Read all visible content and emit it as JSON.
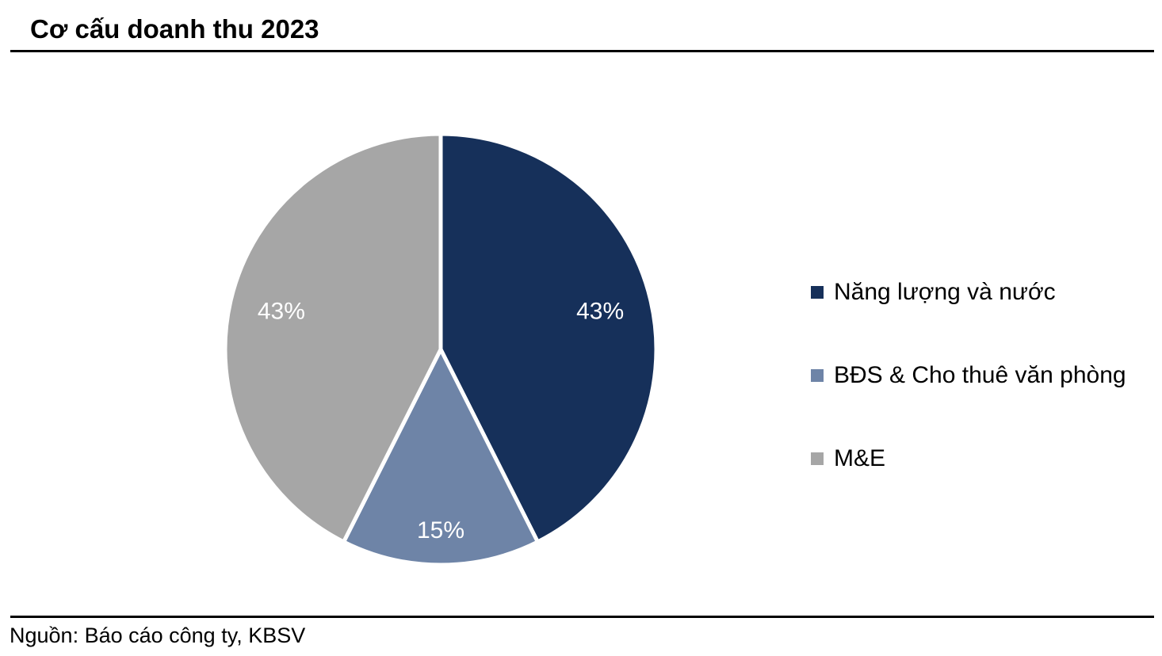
{
  "header": {
    "title": "Cơ cấu doanh thu 2023"
  },
  "footer": {
    "source": "Nguồn: Báo cáo công ty, KBSV"
  },
  "chart_data": {
    "type": "pie",
    "title": "Cơ cấu doanh thu 2023",
    "start_angle_deg": 0,
    "direction": "clockwise",
    "legend_position": "right",
    "segments": [
      {
        "label": "Năng lượng và nước",
        "value": 43,
        "display_label": "43%",
        "color": "#16305A"
      },
      {
        "label": "BĐS & Cho thuê văn phòng",
        "value": 15,
        "display_label": "15%",
        "color": "#6E84A7"
      },
      {
        "label": "M&E",
        "value": 43,
        "display_label": "43%",
        "color": "#A6A6A6"
      }
    ],
    "value_label_color": "#FFFFFF",
    "slice_separator_color": "#FFFFFF",
    "source": "Nguồn: Báo cáo công ty, KBSV"
  }
}
